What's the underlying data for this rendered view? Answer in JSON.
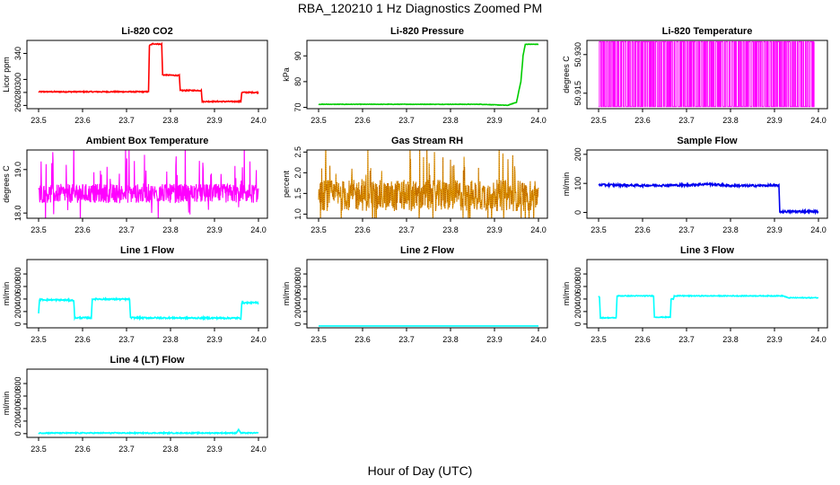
{
  "figure": {
    "title": "RBA_120210  1 Hz Diagnostics Zoomed PM",
    "xlabel": "Hour of Day (UTC)"
  },
  "chart_data": [
    {
      "type": "line",
      "title": "Li-820 CO2",
      "ylabel": "Licor ppm",
      "xlim": [
        23.5,
        24.0
      ],
      "ylim": [
        255,
        360
      ],
      "xticks": [
        "23.5",
        "23.6",
        "23.7",
        "23.8",
        "23.9",
        "24.0"
      ],
      "yticks": [
        260,
        280,
        300,
        340
      ],
      "ytick_labels": [
        "260",
        "280",
        "300",
        "340"
      ],
      "series": [
        {
          "color": "#ff0000",
          "noise": 0.8,
          "x": [
            23.5,
            23.75,
            23.752,
            23.76,
            23.78,
            23.782,
            23.82,
            23.822,
            23.87,
            23.872,
            23.96,
            23.962,
            24.0
          ],
          "y": [
            281,
            281,
            352,
            355,
            354,
            307,
            306,
            283,
            283,
            266,
            266,
            280,
            280
          ]
        }
      ]
    },
    {
      "type": "line",
      "title": "Li-820 Pressure",
      "ylabel": "kPa",
      "xlim": [
        23.5,
        24.0
      ],
      "ylim": [
        69.5,
        96
      ],
      "xticks": [
        "23.5",
        "23.6",
        "23.7",
        "23.8",
        "23.9",
        "24.0"
      ],
      "yticks": [
        70,
        80,
        90
      ],
      "ytick_labels": [
        "70",
        "80",
        "90"
      ],
      "series": [
        {
          "color": "#00cc00",
          "noise": 0.08,
          "x": [
            23.5,
            23.87,
            23.9,
            23.93,
            23.95,
            23.96,
            23.965,
            23.97,
            24.0
          ],
          "y": [
            71.2,
            71.2,
            71.0,
            70.8,
            72,
            80,
            90,
            94.5,
            94.5
          ]
        }
      ]
    },
    {
      "type": "line",
      "title": "Li-820 Temperature",
      "ylabel": "degrees C",
      "xlim": [
        23.5,
        24.0
      ],
      "ylim": [
        50.909,
        50.9355
      ],
      "xticks": [
        "23.5",
        "23.6",
        "23.7",
        "23.8",
        "23.9",
        "24.0"
      ],
      "yticks": [
        50.915,
        50.93
      ],
      "ytick_labels": [
        "50.915",
        "50.930"
      ],
      "series": [
        {
          "color": "#ff00ff",
          "pattern": "toggle",
          "low": 50.9098,
          "high": 50.935,
          "x_start": 23.5,
          "x_end": 23.99
        }
      ]
    },
    {
      "type": "line",
      "title": "Ambient Box Temperature",
      "ylabel": "degrees C",
      "xlim": [
        23.5,
        24.0
      ],
      "ylim": [
        17.88,
        19.45
      ],
      "xticks": [
        "23.5",
        "23.6",
        "23.7",
        "23.8",
        "23.9",
        "24.0"
      ],
      "yticks": [
        18.0,
        19.0
      ],
      "ytick_labels": [
        "18.0",
        "19.0"
      ],
      "series": [
        {
          "color": "#ff00ff",
          "pattern": "noise",
          "base": 18.45,
          "amp": 0.22,
          "spike": 0.85,
          "x_start": 23.5,
          "x_end": 24.0
        }
      ]
    },
    {
      "type": "line",
      "title": "Gas Stream RH",
      "ylabel": "percent",
      "xlim": [
        23.5,
        24.0
      ],
      "ylim": [
        0.9,
        2.55
      ],
      "xticks": [
        "23.5",
        "23.6",
        "23.7",
        "23.8",
        "23.9",
        "24.0"
      ],
      "yticks": [
        1.0,
        1.5,
        2.0,
        2.5
      ],
      "ytick_labels": [
        "1.0",
        "1.5",
        "2.0",
        "2.5"
      ],
      "series": [
        {
          "color": "#e6a000",
          "edge": "#b35900",
          "pattern": "noise",
          "base": 1.45,
          "amp": 0.38,
          "spike": 0.95,
          "x_start": 23.5,
          "x_end": 24.0
        }
      ]
    },
    {
      "type": "line",
      "title": "Sample Flow",
      "ylabel": "ml/min",
      "xlim": [
        23.5,
        24.0
      ],
      "ylim": [
        -20,
        215
      ],
      "xticks": [
        "23.5",
        "23.6",
        "23.7",
        "23.8",
        "23.9",
        "24.0"
      ],
      "yticks": [
        0,
        100,
        200
      ],
      "ytick_labels": [
        "0",
        "100",
        "200"
      ],
      "series": [
        {
          "color": "#0000ee",
          "noise": 3.5,
          "x": [
            23.5,
            23.6,
            23.7,
            23.75,
            23.8,
            23.85,
            23.91,
            23.912,
            24.0
          ],
          "y": [
            95,
            93,
            94,
            98,
            92,
            92,
            93,
            3,
            3
          ]
        }
      ]
    },
    {
      "type": "line",
      "title": "Line 1 Flow",
      "ylabel": "ml/min",
      "xlim": [
        23.5,
        24.0
      ],
      "ylim": [
        -60,
        1030
      ],
      "xticks": [
        "23.5",
        "23.6",
        "23.7",
        "23.8",
        "23.9",
        "24.0"
      ],
      "yticks": [
        0,
        200,
        400,
        600,
        800
      ],
      "ytick_labels": [
        "0",
        "200",
        "400",
        "600",
        "800"
      ],
      "series": [
        {
          "color": "#00ffff",
          "noise": 12,
          "x": [
            23.5,
            23.502,
            23.58,
            23.582,
            23.62,
            23.622,
            23.707,
            23.709,
            23.96,
            23.962,
            24.0
          ],
          "y": [
            160,
            390,
            380,
            100,
            100,
            400,
            395,
            100,
            95,
            340,
            340
          ]
        }
      ]
    },
    {
      "type": "line",
      "title": "Line 2 Flow",
      "ylabel": "ml/min",
      "xlim": [
        23.5,
        24.0
      ],
      "ylim": [
        -60,
        1030
      ],
      "xticks": [
        "23.5",
        "23.6",
        "23.7",
        "23.8",
        "23.9",
        "24.0"
      ],
      "yticks": [
        0,
        200,
        400,
        600,
        800
      ],
      "ytick_labels": [
        "0",
        "200",
        "400",
        "600",
        "800"
      ],
      "series": [
        {
          "color": "#00ffff",
          "noise": 0,
          "x": [
            23.5,
            24.0
          ],
          "y": [
            -30,
            -30
          ]
        }
      ]
    },
    {
      "type": "line",
      "title": "Line 3 Flow",
      "ylabel": "ml/min",
      "xlim": [
        23.5,
        24.0
      ],
      "ylim": [
        -60,
        1030
      ],
      "xticks": [
        "23.5",
        "23.6",
        "23.7",
        "23.8",
        "23.9",
        "24.0"
      ],
      "yticks": [
        0,
        200,
        400,
        600,
        800
      ],
      "ytick_labels": [
        "0",
        "200",
        "400",
        "600",
        "800"
      ],
      "series": [
        {
          "color": "#00ffff",
          "noise": 6,
          "x": [
            23.5,
            23.502,
            23.504,
            23.54,
            23.542,
            23.625,
            23.627,
            23.663,
            23.665,
            23.67,
            23.672,
            23.92,
            23.93,
            24.0
          ],
          "y": [
            450,
            430,
            100,
            100,
            450,
            450,
            110,
            110,
            400,
            400,
            450,
            450,
            420,
            420
          ]
        }
      ]
    },
    {
      "type": "line",
      "title": "Line 4 (LT) Flow",
      "ylabel": "ml/min",
      "xlim": [
        23.5,
        24.0
      ],
      "ylim": [
        -60,
        1030
      ],
      "xticks": [
        "23.5",
        "23.6",
        "23.7",
        "23.8",
        "23.9",
        "24.0"
      ],
      "yticks": [
        0,
        200,
        400,
        600,
        800
      ],
      "ytick_labels": [
        "0",
        "200",
        "400",
        "600",
        "800"
      ],
      "series": [
        {
          "color": "#00ffff",
          "noise": 8,
          "x": [
            23.5,
            23.95,
            23.955,
            23.957,
            23.96,
            24.0
          ],
          "y": [
            10,
            10,
            70,
            40,
            10,
            10
          ]
        }
      ]
    }
  ]
}
